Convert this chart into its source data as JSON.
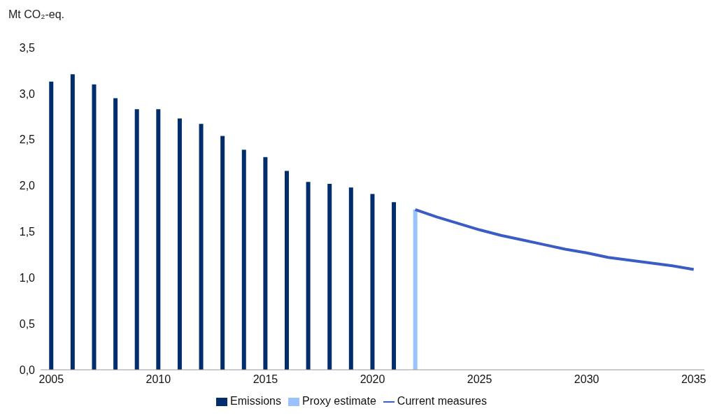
{
  "chart_data": {
    "type": "bar",
    "ylabel": "Mt CO₂-eq.",
    "categories": [
      "2005",
      null,
      null,
      null,
      null,
      "2010",
      null,
      null,
      null,
      null,
      "2015",
      null,
      null,
      null,
      null,
      "2020",
      null,
      null,
      null,
      null,
      "2025",
      null,
      null,
      null,
      null,
      "2030",
      null,
      null,
      null,
      null,
      "2035"
    ],
    "series": [
      {
        "name": "Emissions",
        "color": "#002d6b",
        "values": [
          3.13,
          3.21,
          3.1,
          2.95,
          2.83,
          2.83,
          2.73,
          2.67,
          2.54,
          2.39,
          2.31,
          2.16,
          2.04,
          2.02,
          1.98,
          1.91,
          1.82,
          null,
          null,
          null,
          null,
          null,
          null,
          null,
          null,
          null,
          null,
          null,
          null,
          null,
          null
        ]
      },
      {
        "name": "Proxy estimate",
        "color": "#99c2ff",
        "values": [
          null,
          null,
          null,
          null,
          null,
          null,
          null,
          null,
          null,
          null,
          null,
          null,
          null,
          null,
          null,
          null,
          null,
          1.74,
          null,
          null,
          null,
          null,
          null,
          null,
          null,
          null,
          null,
          null,
          null,
          null,
          null
        ]
      },
      {
        "name": "Current measures",
        "type": "line",
        "color": "#3a5cc4",
        "values": [
          null,
          null,
          null,
          null,
          null,
          null,
          null,
          null,
          null,
          null,
          null,
          null,
          null,
          null,
          null,
          null,
          null,
          1.74,
          1.66,
          1.59,
          1.52,
          1.46,
          1.41,
          1.36,
          1.31,
          1.27,
          1.22,
          1.19,
          1.16,
          1.13,
          1.09
        ]
      }
    ],
    "ylim": [
      0,
      3.5
    ],
    "yticks": [
      {
        "value": 0,
        "label": "0,0"
      },
      {
        "value": 0.5,
        "label": "0,5"
      },
      {
        "value": 1,
        "label": "1,0"
      },
      {
        "value": 1.5,
        "label": "1,5"
      },
      {
        "value": 2,
        "label": "2,0"
      },
      {
        "value": 2.5,
        "label": "2,5"
      },
      {
        "value": 3,
        "label": "3,0"
      },
      {
        "value": 3.5,
        "label": "3,5"
      }
    ],
    "grid": false,
    "legend": "bottom",
    "line_style": "solid"
  }
}
